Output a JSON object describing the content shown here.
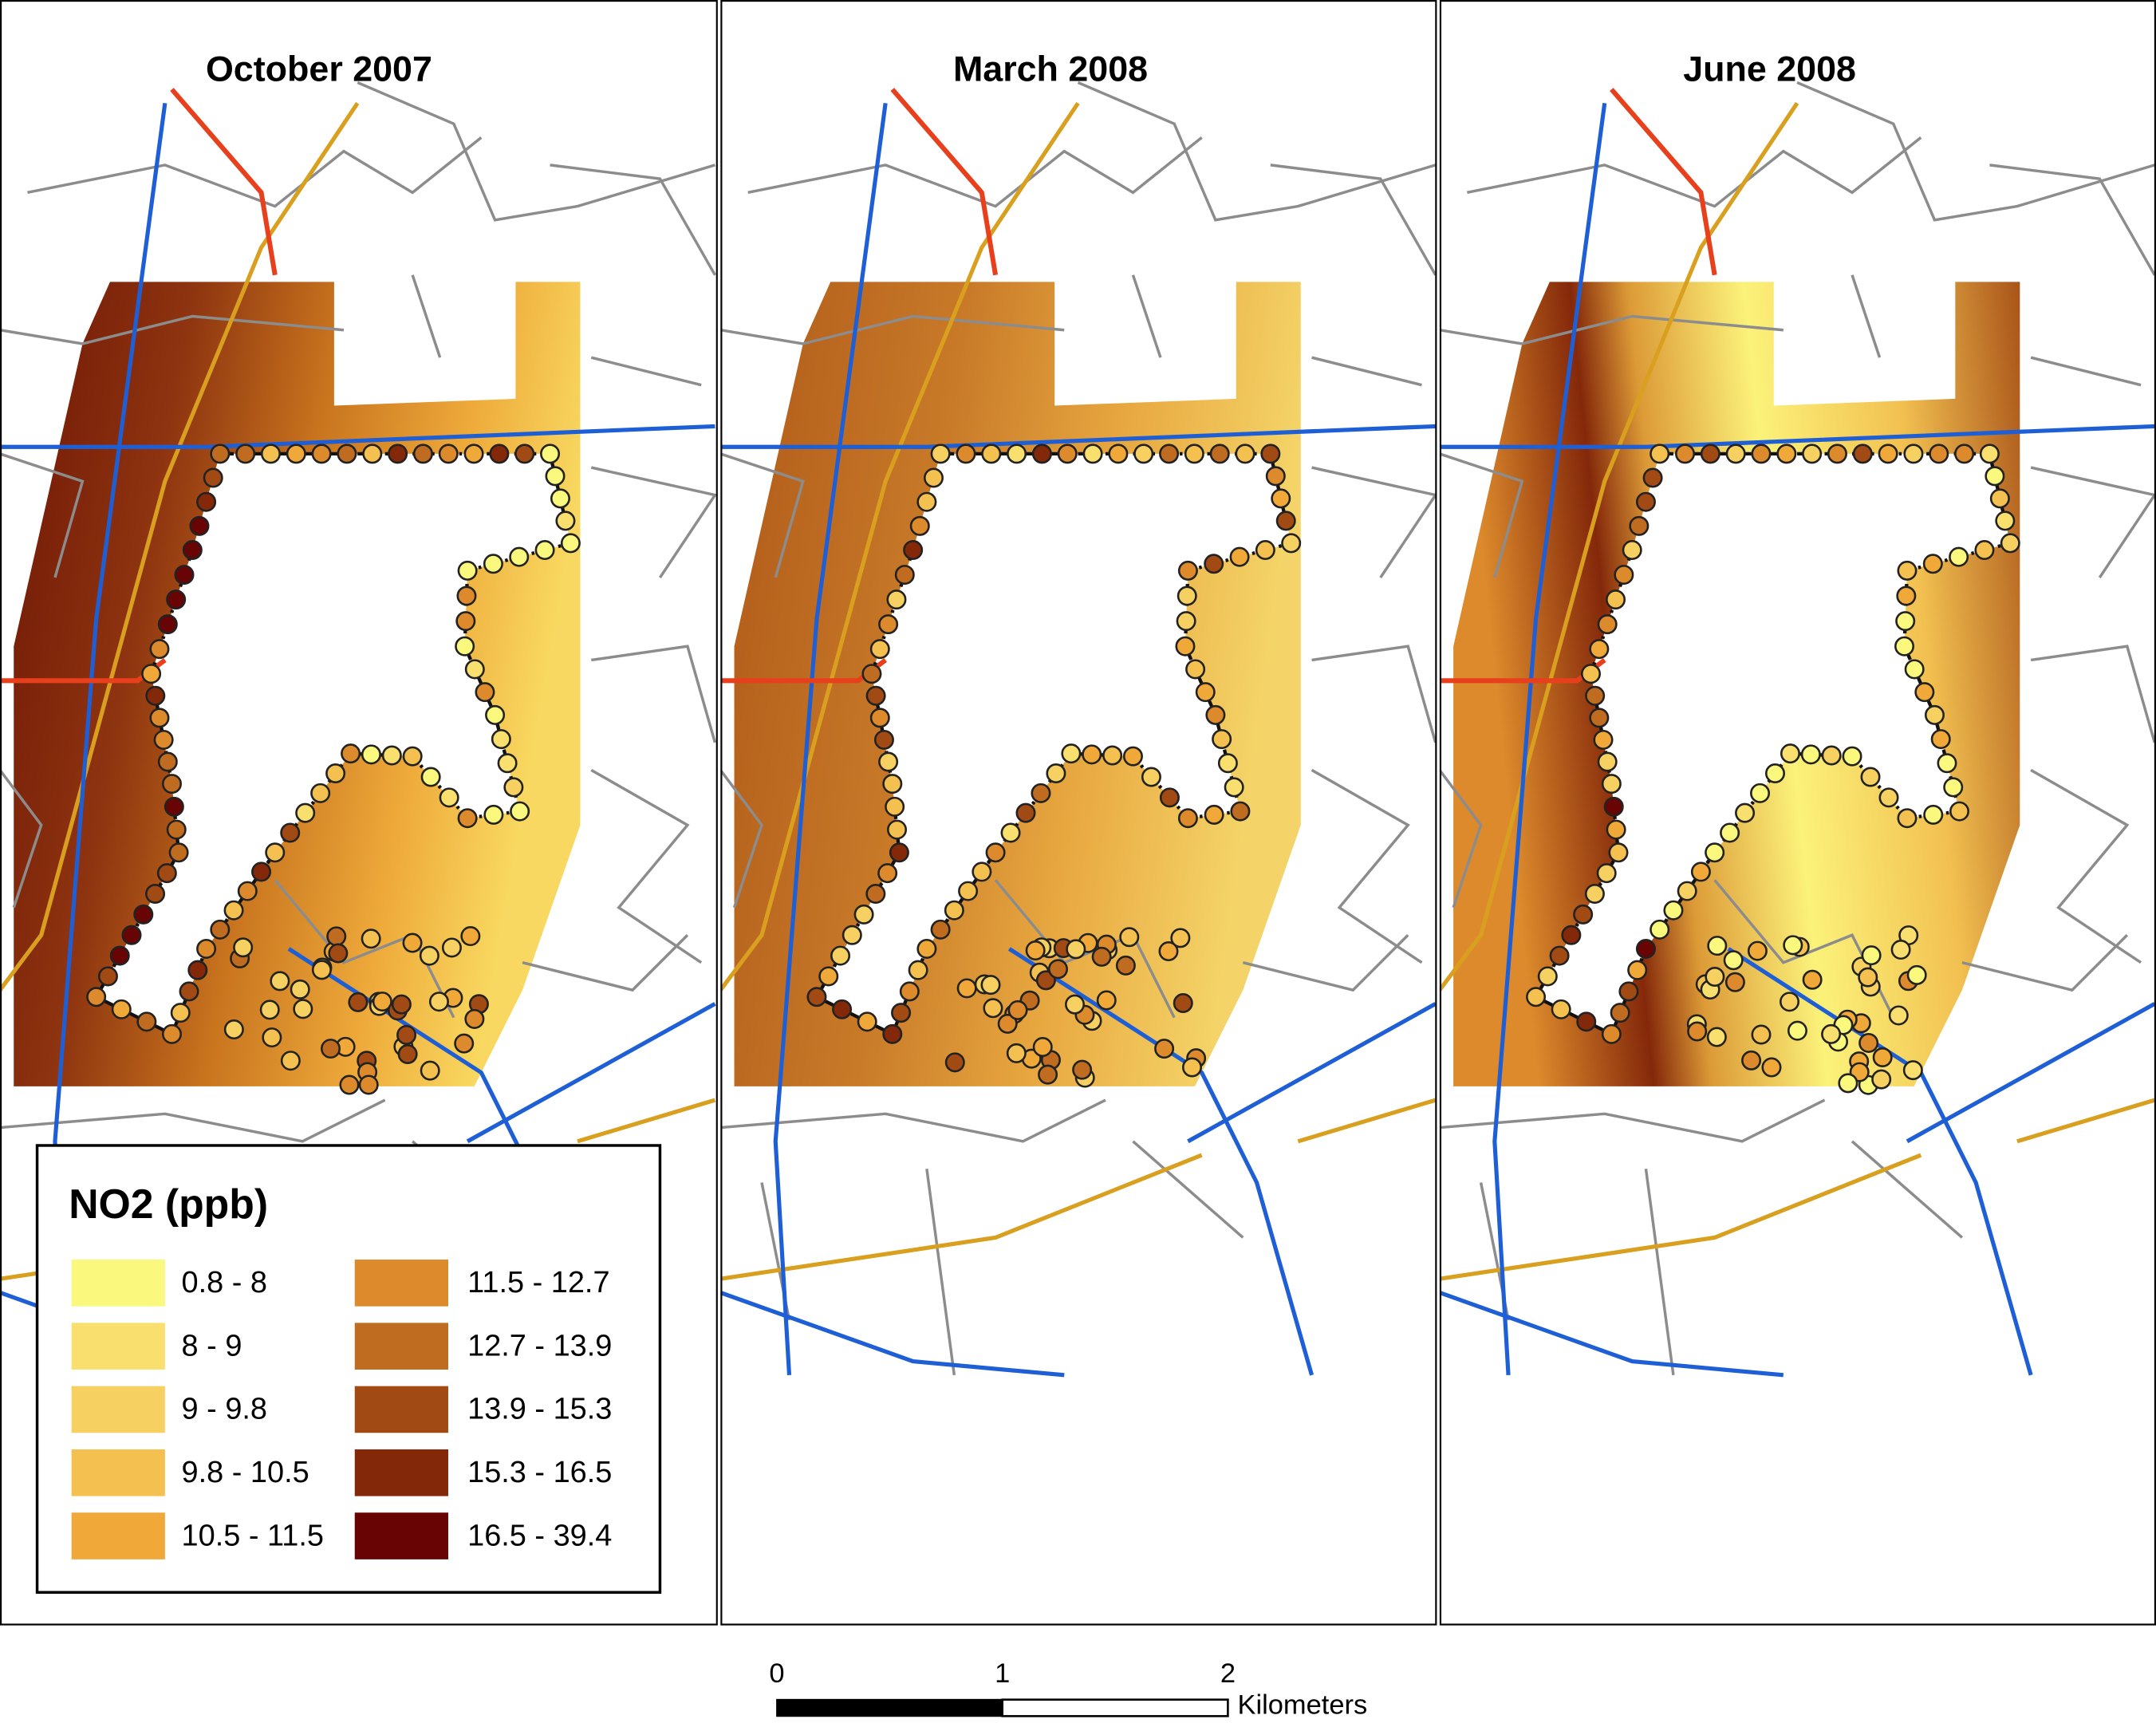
{
  "panels": [
    {
      "title": "October 2007"
    },
    {
      "title": "March 2008"
    },
    {
      "title": "June 2008"
    }
  ],
  "legend": {
    "title": "NO2 (ppb)",
    "items": [
      {
        "label": "0.8 - 8",
        "color": "#fbf87e"
      },
      {
        "label": "8 - 9",
        "color": "#f9e06e"
      },
      {
        "label": "9 - 9.8",
        "color": "#f7d062"
      },
      {
        "label": "9.8 - 10.5",
        "color": "#f4c050"
      },
      {
        "label": "10.5 - 11.5",
        "color": "#f0a838"
      },
      {
        "label": "11.5 - 12.7",
        "color": "#dc8a2c"
      },
      {
        "label": "12.7 - 13.9",
        "color": "#c06c20"
      },
      {
        "label": "13.9 - 15.3",
        "color": "#a24a14"
      },
      {
        "label": "15.3 - 16.5",
        "color": "#84280a"
      },
      {
        "label": "16.5 - 39.4",
        "color": "#680404"
      }
    ]
  },
  "scale_bar": {
    "ticks": [
      "0",
      "1",
      "2"
    ],
    "unit": "Kilometers"
  }
}
